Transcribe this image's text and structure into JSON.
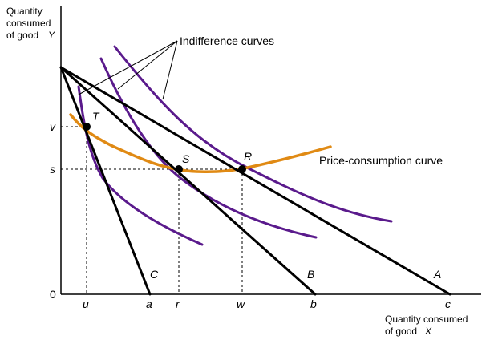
{
  "axes": {
    "y_title_lines": [
      "Quantity",
      "consumed",
      "of good"
    ],
    "y_title_var": "Y",
    "x_title_line1": "Quantity consumed",
    "x_title_line2": "of good",
    "x_title_var": "X",
    "origin": "0"
  },
  "x_ticks": {
    "u": "u",
    "a": "a",
    "r": "r",
    "w": "w",
    "b": "b",
    "c": "c"
  },
  "y_ticks": {
    "v": "v",
    "s": "s"
  },
  "budget_labels": {
    "A": "A",
    "B": "B",
    "C": "C"
  },
  "points": {
    "T": "T",
    "S": "S",
    "R": "R"
  },
  "annotations": {
    "indifference": "Indifference curves",
    "pcc": "Price-consumption curve"
  },
  "colors": {
    "axis": "#000000",
    "budget_line": "#000000",
    "indifference_curve": "#5a1a8c",
    "price_consumption_curve": "#e08a14",
    "guide_line": "#000000"
  }
}
